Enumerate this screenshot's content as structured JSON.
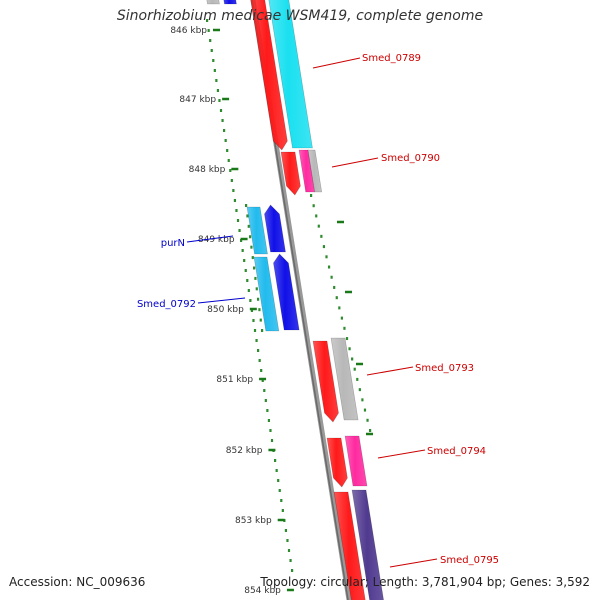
{
  "title": "Sinorhizobium medicae WSM419, complete genome",
  "footer": {
    "accession": "Accession: NC_009636",
    "topology": "Topology: circular; Length: 3,781,904 bp; Genes: 3,592"
  },
  "colors": {
    "backbone": "#888888",
    "tick": "#1a7a1a",
    "dot": "#2e8b2e",
    "forward_label": "#cc0000",
    "reverse_label": "#0000cc",
    "red": "#ff1a1a",
    "cyan": "#1ae0f0",
    "magenta": "#ff2aa0",
    "gray": "#b8b8b8",
    "blue": "#1010e8",
    "sky": "#22bbee",
    "purple": "#503a90"
  },
  "ticks": [
    {
      "label": "846 kbp",
      "pos": 846
    },
    {
      "label": "847 kbp",
      "pos": 847
    },
    {
      "label": "848 kbp",
      "pos": 848
    },
    {
      "label": "849 kbp",
      "pos": 849
    },
    {
      "label": "850 kbp",
      "pos": 850
    },
    {
      "label": "851 kbp",
      "pos": 851
    },
    {
      "label": "852 kbp",
      "pos": 852
    },
    {
      "label": "853 kbp",
      "pos": 853
    },
    {
      "label": "854 kbp",
      "pos": 854
    }
  ],
  "genes": [
    {
      "label": "Smed_0789",
      "strand": "forward"
    },
    {
      "label": "Smed_0790",
      "strand": "forward"
    },
    {
      "label": "purN",
      "strand": "reverse"
    },
    {
      "label": "Smed_0792",
      "strand": "reverse"
    },
    {
      "label": "Smed_0793",
      "strand": "forward"
    },
    {
      "label": "Smed_0794",
      "strand": "forward"
    },
    {
      "label": "Smed_0795",
      "strand": "forward"
    }
  ]
}
